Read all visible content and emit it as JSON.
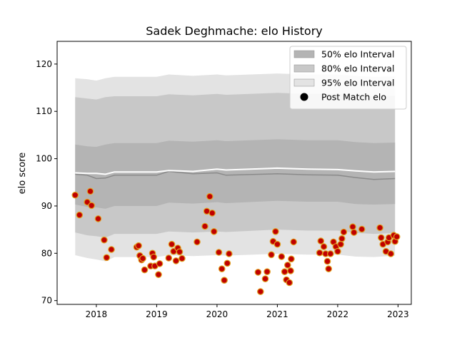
{
  "chart_data": {
    "type": "scatter",
    "title": "Sadek Deghmache: elo History",
    "xlabel": "",
    "ylabel": "elo score",
    "xlim": [
      2017.35,
      2023.22
    ],
    "ylim": [
      69.2,
      124.8
    ],
    "x_ticks": [
      2018,
      2019,
      2020,
      2021,
      2022,
      2023
    ],
    "x_tick_labels": [
      "2018",
      "2019",
      "2020",
      "2021",
      "2022",
      "2023"
    ],
    "y_ticks": [
      70,
      80,
      90,
      100,
      110,
      120
    ],
    "y_tick_labels": [
      "70",
      "80",
      "90",
      "100",
      "110",
      "120"
    ],
    "grid": false,
    "legend_position": "top-right",
    "legend": [
      {
        "label": "50% elo Interval",
        "kind": "band",
        "color": "#b4b4b4"
      },
      {
        "label": "80% elo Interval",
        "kind": "band",
        "color": "#c8c8c8"
      },
      {
        "label": "95% elo Interval",
        "kind": "band",
        "color": "#e3e3e3"
      },
      {
        "label": "Post Match elo",
        "kind": "marker",
        "color": "#000000"
      }
    ],
    "colors": {
      "band_95": "#e3e3e3",
      "band_80": "#c8c8c8",
      "band_50": "#b4b4b4",
      "mean_line": "#ffffff",
      "median_line": "#8a8a8a",
      "point_fill": "#c00000",
      "point_edge": "#e0a020"
    },
    "bands": {
      "x": [
        2017.65,
        2017.85,
        2018.0,
        2018.15,
        2018.3,
        2019.0,
        2019.2,
        2019.6,
        2020.0,
        2020.15,
        2021.0,
        2021.5,
        2022.0,
        2022.3,
        2022.6,
        2022.95
      ],
      "upper95": [
        117.0,
        116.8,
        116.5,
        117.0,
        117.3,
        117.3,
        117.8,
        117.5,
        117.8,
        117.6,
        118.0,
        117.8,
        117.8,
        117.5,
        117.3,
        117.4
      ],
      "lower95": [
        79.6,
        79.0,
        78.7,
        78.3,
        79.2,
        79.2,
        79.6,
        79.4,
        79.6,
        79.5,
        79.9,
        79.7,
        79.7,
        79.3,
        79.2,
        79.5
      ],
      "upper80": [
        113.0,
        112.7,
        112.5,
        113.0,
        113.2,
        113.2,
        113.6,
        113.4,
        113.7,
        113.5,
        113.9,
        113.7,
        113.7,
        113.4,
        113.2,
        113.3
      ],
      "lower80": [
        84.4,
        83.8,
        83.6,
        83.3,
        84.1,
        84.1,
        84.6,
        84.4,
        84.6,
        84.5,
        85.0,
        84.8,
        84.8,
        84.3,
        84.1,
        84.3
      ],
      "upper50": [
        103.0,
        102.6,
        102.5,
        103.0,
        103.3,
        103.3,
        103.8,
        103.6,
        103.9,
        103.7,
        104.1,
        103.9,
        103.9,
        103.5,
        103.3,
        103.4
      ],
      "lower50": [
        90.3,
        89.8,
        89.7,
        89.4,
        90.0,
        90.0,
        90.7,
        90.5,
        90.8,
        90.6,
        91.1,
        90.9,
        90.9,
        90.4,
        90.3,
        90.4
      ],
      "mean": [
        97.0,
        96.9,
        96.9,
        96.7,
        97.2,
        97.2,
        97.5,
        97.3,
        97.8,
        97.6,
        98.0,
        97.8,
        97.7,
        97.4,
        97.2,
        97.3
      ],
      "median": [
        96.7,
        96.5,
        95.8,
        95.9,
        96.5,
        96.5,
        97.3,
        96.8,
        97.0,
        96.5,
        96.8,
        96.6,
        96.5,
        96.0,
        95.6,
        95.8
      ]
    },
    "series": [
      {
        "name": "Post Match elo",
        "points": [
          [
            2017.65,
            92.3
          ],
          [
            2017.72,
            88.1
          ],
          [
            2017.85,
            90.8
          ],
          [
            2017.9,
            93.1
          ],
          [
            2017.92,
            90.1
          ],
          [
            2018.03,
            87.3
          ],
          [
            2018.13,
            82.8
          ],
          [
            2018.17,
            79.1
          ],
          [
            2018.25,
            80.8
          ],
          [
            2018.67,
            81.3
          ],
          [
            2018.7,
            81.6
          ],
          [
            2018.72,
            79.5
          ],
          [
            2018.75,
            78.6
          ],
          [
            2018.77,
            78.9
          ],
          [
            2018.8,
            76.5
          ],
          [
            2018.9,
            77.3
          ],
          [
            2018.93,
            80.0
          ],
          [
            2018.95,
            79.2
          ],
          [
            2018.97,
            77.3
          ],
          [
            2019.03,
            75.5
          ],
          [
            2019.05,
            77.8
          ],
          [
            2019.2,
            79.0
          ],
          [
            2019.25,
            81.9
          ],
          [
            2019.28,
            80.4
          ],
          [
            2019.32,
            78.4
          ],
          [
            2019.35,
            81.1
          ],
          [
            2019.38,
            80.3
          ],
          [
            2019.42,
            78.9
          ],
          [
            2019.67,
            82.4
          ],
          [
            2019.8,
            85.7
          ],
          [
            2019.83,
            88.9
          ],
          [
            2019.88,
            92.0
          ],
          [
            2019.92,
            88.5
          ],
          [
            2019.95,
            84.6
          ],
          [
            2020.03,
            80.2
          ],
          [
            2020.08,
            76.7
          ],
          [
            2020.12,
            74.3
          ],
          [
            2020.17,
            77.9
          ],
          [
            2020.2,
            79.9
          ],
          [
            2020.68,
            76.0
          ],
          [
            2020.72,
            71.9
          ],
          [
            2020.8,
            74.6
          ],
          [
            2020.83,
            76.1
          ],
          [
            2020.9,
            79.7
          ],
          [
            2020.93,
            82.5
          ],
          [
            2020.97,
            84.6
          ],
          [
            2021.0,
            81.9
          ],
          [
            2021.07,
            79.3
          ],
          [
            2021.12,
            76.1
          ],
          [
            2021.15,
            74.4
          ],
          [
            2021.17,
            77.5
          ],
          [
            2021.2,
            73.8
          ],
          [
            2021.22,
            76.3
          ],
          [
            2021.23,
            78.8
          ],
          [
            2021.27,
            82.4
          ],
          [
            2021.7,
            80.1
          ],
          [
            2021.72,
            82.6
          ],
          [
            2021.77,
            81.4
          ],
          [
            2021.8,
            79.9
          ],
          [
            2021.83,
            78.3
          ],
          [
            2021.85,
            76.7
          ],
          [
            2021.88,
            79.9
          ],
          [
            2021.93,
            82.4
          ],
          [
            2021.97,
            81.4
          ],
          [
            2022.0,
            80.4
          ],
          [
            2022.05,
            81.9
          ],
          [
            2022.07,
            83.1
          ],
          [
            2022.1,
            84.5
          ],
          [
            2022.25,
            85.6
          ],
          [
            2022.27,
            84.4
          ],
          [
            2022.4,
            85.1
          ],
          [
            2022.7,
            85.4
          ],
          [
            2022.72,
            83.3
          ],
          [
            2022.75,
            81.9
          ],
          [
            2022.8,
            80.4
          ],
          [
            2022.83,
            82.4
          ],
          [
            2022.85,
            83.3
          ],
          [
            2022.88,
            79.9
          ],
          [
            2022.93,
            83.8
          ],
          [
            2022.95,
            82.5
          ],
          [
            2022.98,
            83.5
          ]
        ]
      }
    ]
  }
}
